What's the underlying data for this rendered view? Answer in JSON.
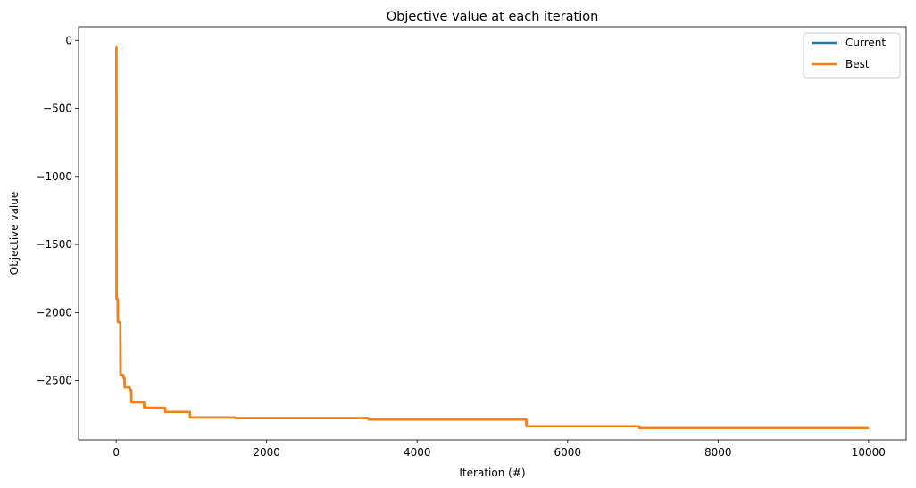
{
  "chart_data": {
    "type": "line",
    "title": "Objective value at each iteration",
    "xlabel": "Iteration (#)",
    "ylabel": "Objective value",
    "xlim": [
      -500,
      10500
    ],
    "ylim": [
      -2935,
      100
    ],
    "xticks": [
      0,
      2000,
      4000,
      6000,
      8000,
      10000
    ],
    "yticks": [
      0,
      -500,
      -1000,
      -1500,
      -2000,
      -2500
    ],
    "xtick_labels": [
      "0",
      "2000",
      "4000",
      "6000",
      "8000",
      "10000"
    ],
    "ytick_labels": [
      "0",
      "−500",
      "−1000",
      "−1500",
      "−2000",
      "−2500"
    ],
    "grid": false,
    "legend_position": "top-right",
    "series": [
      {
        "name": "Current",
        "color": "#1f77b4",
        "points": [
          [
            0,
            -50
          ],
          [
            3,
            -50
          ],
          [
            5,
            -1900
          ],
          [
            20,
            -1900
          ],
          [
            22,
            -2070
          ],
          [
            45,
            -2070
          ],
          [
            48,
            -2080
          ],
          [
            55,
            -2080
          ],
          [
            58,
            -2460
          ],
          [
            95,
            -2460
          ],
          [
            98,
            -2480
          ],
          [
            110,
            -2480
          ],
          [
            113,
            -2550
          ],
          [
            180,
            -2550
          ],
          [
            183,
            -2570
          ],
          [
            200,
            -2570
          ],
          [
            203,
            -2660
          ],
          [
            370,
            -2660
          ],
          [
            373,
            -2700
          ],
          [
            650,
            -2700
          ],
          [
            653,
            -2730
          ],
          [
            980,
            -2730
          ],
          [
            983,
            -2770
          ],
          [
            1580,
            -2770
          ],
          [
            1583,
            -2775
          ],
          [
            3350,
            -2775
          ],
          [
            3353,
            -2785
          ],
          [
            5450,
            -2785
          ],
          [
            5453,
            -2835
          ],
          [
            6950,
            -2835
          ],
          [
            6953,
            -2848
          ],
          [
            10000,
            -2848
          ]
        ]
      },
      {
        "name": "Best",
        "color": "#ff7f0e",
        "points": [
          [
            0,
            -50
          ],
          [
            3,
            -50
          ],
          [
            5,
            -1900
          ],
          [
            20,
            -1900
          ],
          [
            22,
            -2070
          ],
          [
            45,
            -2070
          ],
          [
            48,
            -2080
          ],
          [
            55,
            -2080
          ],
          [
            58,
            -2460
          ],
          [
            95,
            -2460
          ],
          [
            98,
            -2480
          ],
          [
            110,
            -2480
          ],
          [
            113,
            -2550
          ],
          [
            180,
            -2550
          ],
          [
            183,
            -2570
          ],
          [
            200,
            -2570
          ],
          [
            203,
            -2660
          ],
          [
            370,
            -2660
          ],
          [
            373,
            -2700
          ],
          [
            650,
            -2700
          ],
          [
            653,
            -2730
          ],
          [
            980,
            -2730
          ],
          [
            983,
            -2770
          ],
          [
            1580,
            -2770
          ],
          [
            1583,
            -2775
          ],
          [
            3350,
            -2775
          ],
          [
            3353,
            -2785
          ],
          [
            5450,
            -2785
          ],
          [
            5453,
            -2835
          ],
          [
            6950,
            -2835
          ],
          [
            6953,
            -2848
          ],
          [
            10000,
            -2848
          ]
        ]
      }
    ]
  }
}
